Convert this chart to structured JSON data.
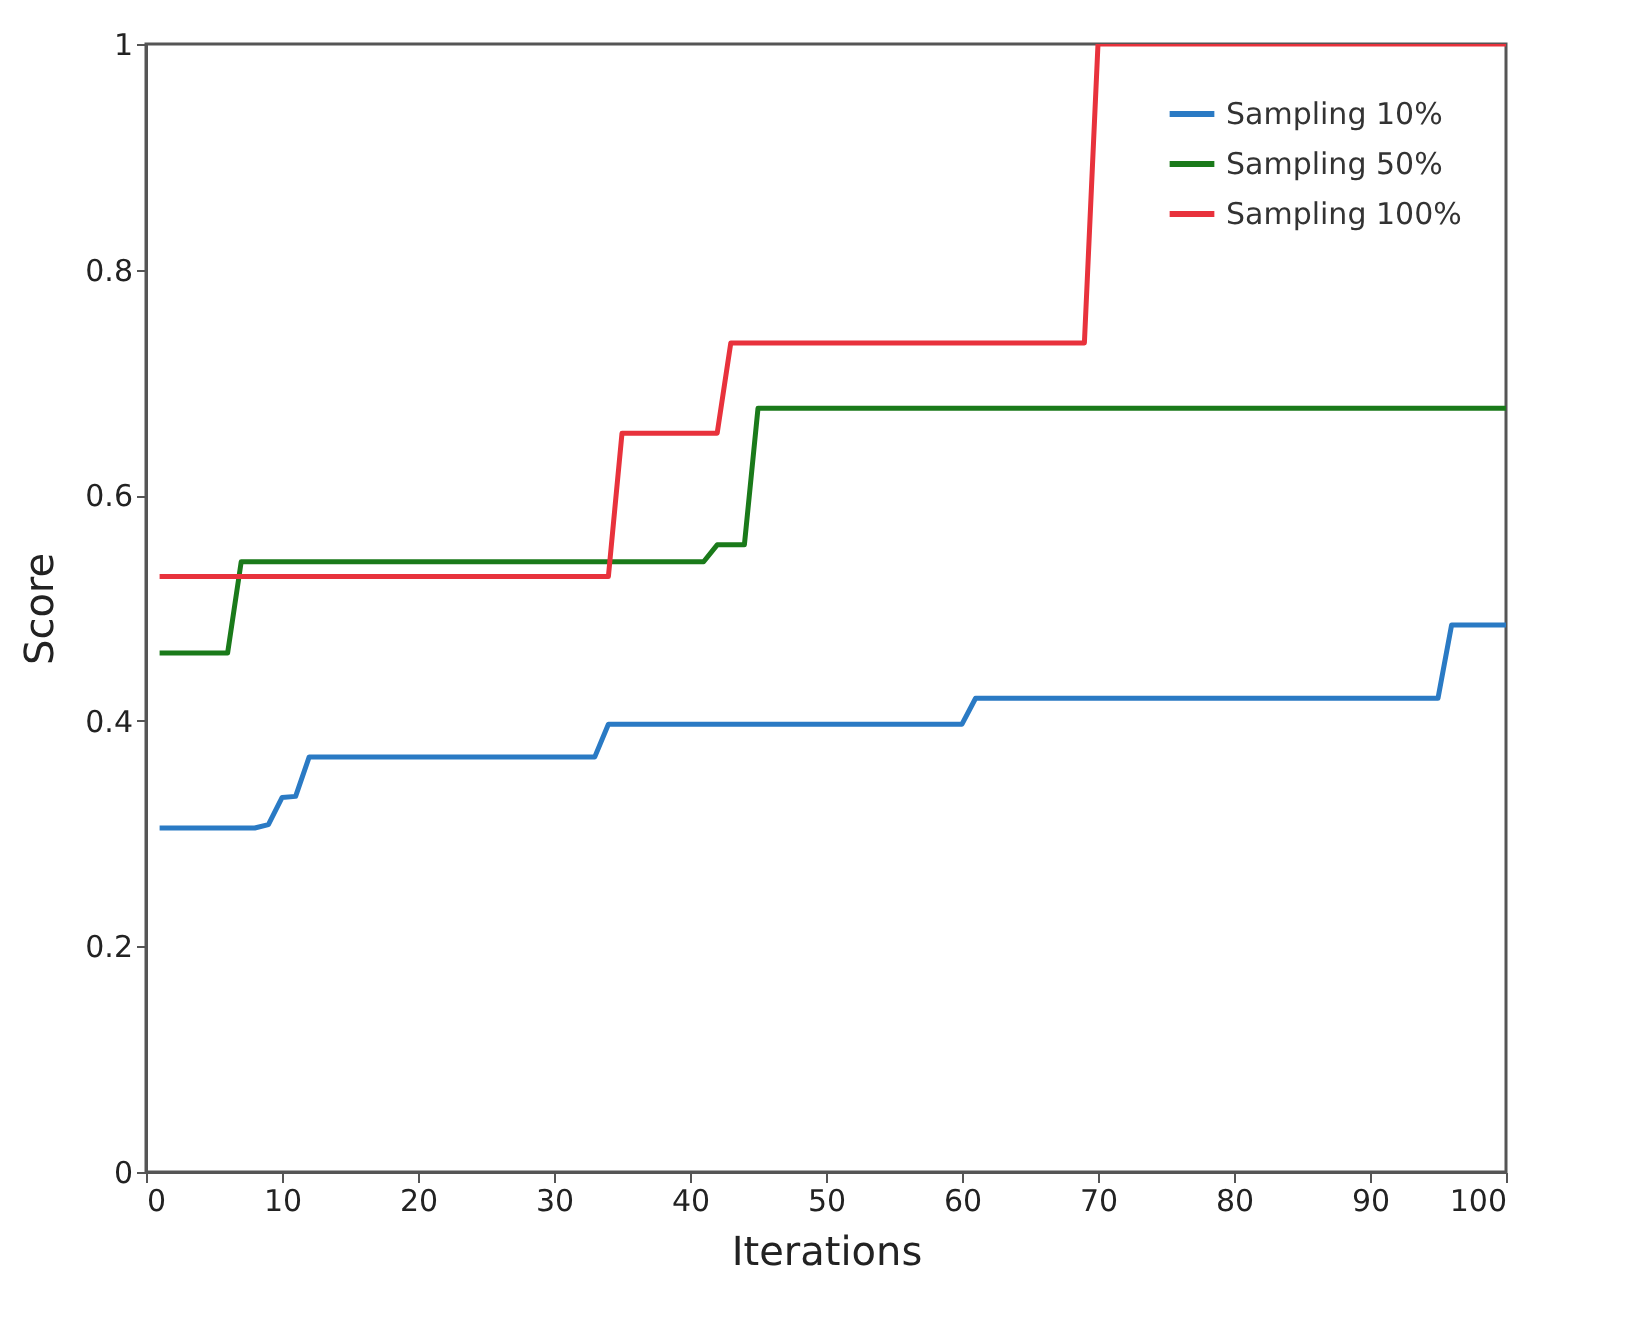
{
  "chart_data": {
    "type": "line",
    "xlabel": "Iterations",
    "ylabel": "Score",
    "xlim": [
      0,
      100
    ],
    "xticks": [
      0,
      10,
      20,
      30,
      40,
      50,
      60,
      70,
      80,
      90,
      100
    ],
    "ylim": [
      0,
      1
    ],
    "yticks": [
      0,
      0.2,
      0.4,
      0.6,
      0.8,
      1
    ],
    "grid": false,
    "legend": "top right",
    "marker": "none",
    "line_style": "solid",
    "series": [
      {
        "name": "Sampling 10%",
        "color": "#2a7ac4",
        "x": [
          1,
          8,
          9,
          10,
          11,
          12,
          33,
          34,
          60,
          61,
          95,
          96,
          100
        ],
        "values": [
          0.305,
          0.305,
          0.308,
          0.332,
          0.333,
          0.368,
          0.368,
          0.397,
          0.397,
          0.42,
          0.42,
          0.485,
          0.485
        ]
      },
      {
        "name": "Sampling 50%",
        "color": "#1a7a1a",
        "x": [
          1,
          6,
          7,
          41,
          42,
          44,
          45,
          100
        ],
        "values": [
          0.46,
          0.46,
          0.541,
          0.541,
          0.556,
          0.556,
          0.677,
          0.677
        ]
      },
      {
        "name": "Sampling 100%",
        "color": "#e8323c",
        "x": [
          1,
          34,
          35,
          42,
          43,
          69,
          70,
          100
        ],
        "values": [
          0.528,
          0.528,
          0.655,
          0.655,
          0.735,
          0.735,
          1,
          1
        ]
      }
    ]
  }
}
